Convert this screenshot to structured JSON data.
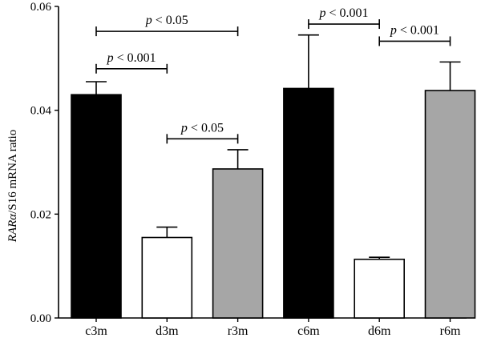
{
  "chart_data": {
    "type": "bar",
    "categories": [
      "c3m",
      "d3m",
      "r3m",
      "c6m",
      "d6m",
      "r6m"
    ],
    "values": [
      0.043,
      0.0155,
      0.0287,
      0.0442,
      0.0113,
      0.0438
    ],
    "errors": [
      0.0025,
      0.002,
      0.0037,
      0.0103,
      0.0004,
      0.0055
    ],
    "colors": [
      "#000000",
      "#ffffff",
      "#a6a6a6",
      "#000000",
      "#ffffff",
      "#a6a6a6"
    ],
    "ylabel_main": "RARα",
    "ylabel_rest": "/S16 mRNA ratio",
    "ylim": [
      0,
      0.06
    ],
    "yticks": [
      0,
      0.02,
      0.04,
      0.06
    ],
    "ytick_labels": [
      "0.00",
      "0.02",
      "0.04",
      "0.06"
    ],
    "grid": false,
    "significance": [
      {
        "from": 0,
        "to": 2,
        "y": 0.0552,
        "p": "p",
        "rest": " < 0.05"
      },
      {
        "from": 0,
        "to": 1,
        "y": 0.048,
        "p": "p",
        "rest": " < 0.001"
      },
      {
        "from": 1,
        "to": 2,
        "y": 0.0345,
        "p": "p",
        "rest": " < 0.05"
      },
      {
        "from": 3,
        "to": 4,
        "y": 0.0566,
        "p": "p",
        "rest": " < 0.001"
      },
      {
        "from": 4,
        "to": 5,
        "y": 0.0533,
        "p": "p",
        "rest": " < 0.001"
      }
    ]
  }
}
